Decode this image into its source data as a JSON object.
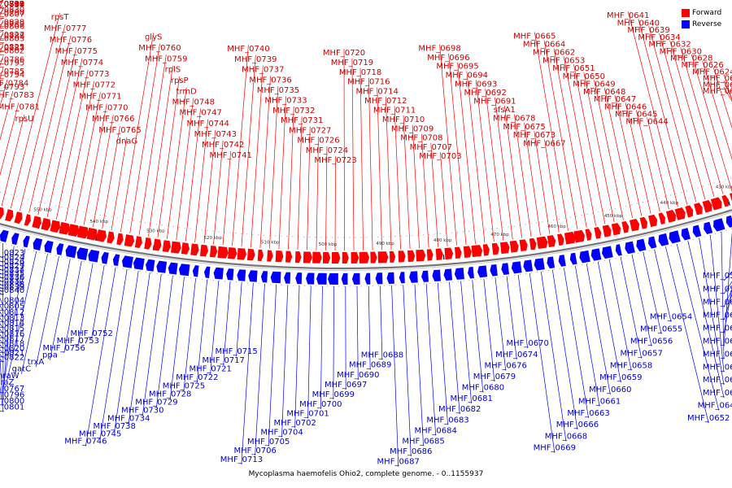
{
  "title": "Mycoplasma haemofelis Ohio2, complete genome. - 0..1155937",
  "colors": {
    "forward": "#ff0000",
    "reverse": "#0000ff",
    "backbone": "#777777",
    "forward_label": "#cc0000",
    "reverse_label": "#0000cc"
  },
  "legend": [
    {
      "label": "Forward",
      "color": "#ff0000"
    },
    {
      "label": "Reverse",
      "color": "#0000ff"
    }
  ],
  "chart_data": {
    "type": "circular-genome-map",
    "genome_length": 1155937,
    "visible_range_kbp": [
      420,
      605
    ],
    "tick_labels": [
      "430 kbp",
      "440 kbp",
      "450 kbp",
      "460 kbp",
      "470 kbp",
      "480 kbp",
      "490 kbp",
      "500 kbp",
      "510 kbp",
      "520 kbp",
      "530 kbp",
      "540 kbp",
      "550 kbp",
      "560 kbp",
      "570 kbp",
      "580 kbp",
      "590 kbp",
      "600 kbp"
    ],
    "reverse_genes": [
      "MHF_0594",
      "MHF_0597",
      "MHF_0603",
      "MHF_0614",
      "MHF_0617",
      "MHF_0619",
      "MHF_0622",
      "MHF_0637",
      "MHF_0638",
      "MHF_0642",
      "MHF_0643",
      "MHF_0652",
      "MHF_0654",
      "MHF_0655",
      "MHF_0656",
      "MHF_0657",
      "MHF_0658",
      "MHF_0659",
      "MHF_0660",
      "MHF_0661",
      "MHF_0663",
      "MHF_0666",
      "MHF_0668",
      "MHF_0669",
      "MHF_0670",
      "MHF_0674",
      "MHF_0676",
      "MHF_0679",
      "MHF_0680",
      "MHF_0681",
      "MHF_0682",
      "MHF_0683",
      "MHF_0684",
      "MHF_0685",
      "MHF_0686",
      "MHF_0687",
      "MHF_0688",
      "MHF_0689",
      "MHF_0690",
      "MHF_0697",
      "MHF_0699",
      "MHF_0700",
      "MHF_0701",
      "MHF_0702",
      "MHF_0704",
      "MHF_0705",
      "MHF_0706",
      "MHF_0713",
      "MHF_0715",
      "MHF_0717",
      "MHF_0721",
      "MHF_0722",
      "MHF_0725",
      "MHF_0728",
      "MHF_0729",
      "MHF_0730",
      "MHF_0734",
      "MHF_0738",
      "MHF_0745",
      "MHF_0746",
      "MHF_0752",
      "MHF_0753",
      "MHF_0756",
      "ppa",
      "trxA",
      "gatC",
      "mraW",
      "mraZ",
      "MHF_0767",
      "MHF_0796",
      "MHF_0800",
      "MHF_0801",
      "MHF_0804",
      "MHF_0805",
      "MHF_0812",
      "MHF_0813",
      "MHF_0814",
      "MHF_0815",
      "MHF_0816",
      "MHF_0817",
      "MHF_0818",
      "MHF_0820",
      "MHF_0821",
      "MHF_0822",
      "MHF_0823",
      "MHF_0824",
      "MHF_0826",
      "MHF_0829",
      "MHF_0834",
      "MHF_0835",
      "MHF_0836",
      "MHF_0837",
      "MHF_0838",
      "MHF_0839",
      "MHF_0840"
    ],
    "forward_genes": [
      "MHF_0618",
      "MHF_0620",
      "MHF_0623",
      "MHF_0624",
      "MHF_0626",
      "MHF_0628",
      "MHF_0630",
      "MHF_0632",
      "MHF_0634",
      "MHF_0639",
      "MHF_0640",
      "MHF_0641",
      "MHF_0644",
      "MHF_0645",
      "MHF_0646",
      "MHF_0647",
      "MHF_0648",
      "MHF_0649",
      "MHF_0650",
      "MHF_0651",
      "MHF_0653",
      "MHF_0662",
      "MHF_0664",
      "MHF_0665",
      "MHF_0667",
      "MHF_0673",
      "MHF_0675",
      "MHF_0678",
      "sfsA1",
      "MHF_0691",
      "MHF_0692",
      "MHF_0693",
      "MHF_0694",
      "MHF_0695",
      "MHF_0696",
      "MHF_0698",
      "MHF_0703",
      "MHF_0707",
      "MHF_0708",
      "MHF_0709",
      "MHF_0710",
      "MHF_0711",
      "MHF_0712",
      "MHF_0714",
      "MHF_0716",
      "MHF_0718",
      "MHF_0719",
      "MHF_0720",
      "MHF_0723",
      "MHF_0724",
      "MHF_0726",
      "MHF_0727",
      "MHF_0731",
      "MHF_0732",
      "MHF_0733",
      "MHF_0735",
      "MHF_0736",
      "MHF_0737",
      "MHF_0739",
      "MHF_0740",
      "MHF_0741",
      "MHF_0742",
      "MHF_0743",
      "MHF_0744",
      "MHF_0747",
      "MHF_0748",
      "trmD",
      "rpsP",
      "rplS",
      "MHF_0759",
      "MHF_0760",
      "glyS",
      "dnaG",
      "MHF_0765",
      "MHF_0766",
      "MHF_0770",
      "MHF_0771",
      "MHF_0772",
      "MHF_0773",
      "MHF_0774",
      "MHF_0775",
      "MHF_0776",
      "MHF_0777",
      "rpsT",
      "rpsU",
      "MHF_0781",
      "MHF_0783",
      "MHF_0784",
      "MHF_0785",
      "MHF_0786",
      "MHF_0787",
      "MHF_0788",
      "MHF_0789",
      "MHF_0790",
      "MHF_0791",
      "MHF_0792",
      "MHF_0793",
      "MHF_0794",
      "MHF_0795",
      "MHF_0802",
      "MHF_0803",
      "MHF_0806",
      "MHF_0807",
      "MHF_0808",
      "MHF_0809",
      "MHF_0810",
      "MHF_0811",
      "MHF_0819",
      "MHF_0825",
      "MHF_0827",
      "MHF_0828",
      "MHF_0830",
      "MHF_0831",
      "MHF_0832"
    ]
  }
}
